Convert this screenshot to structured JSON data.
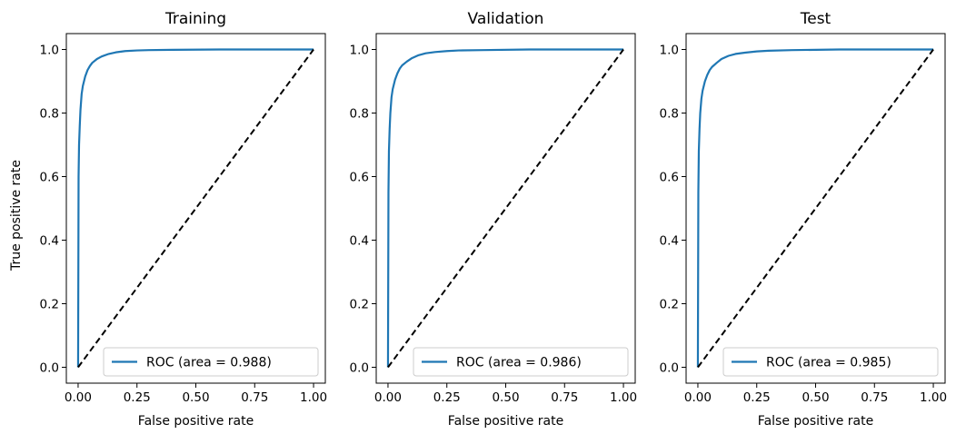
{
  "figure": {
    "ylabel": "True positive rate"
  },
  "chart_data": [
    {
      "type": "line",
      "title": "Training",
      "xlabel": "False positive rate",
      "ylabel": "True positive rate",
      "xlim": [
        -0.05,
        1.05
      ],
      "ylim": [
        -0.05,
        1.05
      ],
      "xticks": [
        "0.00",
        "0.25",
        "0.50",
        "0.75",
        "1.00"
      ],
      "yticks": [
        "0.0",
        "0.2",
        "0.4",
        "0.6",
        "0.8",
        "1.0"
      ],
      "series": [
        {
          "name": "ROC (area = 0.988)",
          "color": "#1f77b4",
          "x": [
            0.0,
            0.002,
            0.004,
            0.007,
            0.01,
            0.015,
            0.02,
            0.03,
            0.04,
            0.05,
            0.06,
            0.08,
            0.1,
            0.13,
            0.16,
            0.2,
            0.25,
            0.3,
            0.4,
            0.6,
            1.0
          ],
          "y": [
            0.0,
            0.6,
            0.7,
            0.76,
            0.81,
            0.86,
            0.885,
            0.915,
            0.935,
            0.948,
            0.958,
            0.97,
            0.978,
            0.986,
            0.991,
            0.995,
            0.997,
            0.998,
            0.999,
            1.0,
            1.0
          ]
        },
        {
          "name": "",
          "color": "#000000",
          "dashed": true,
          "x": [
            0,
            1
          ],
          "y": [
            0,
            1
          ]
        }
      ],
      "legend": {
        "position": "lower-right"
      }
    },
    {
      "type": "line",
      "title": "Validation",
      "xlabel": "False positive rate",
      "ylabel": "",
      "xlim": [
        -0.05,
        1.05
      ],
      "ylim": [
        -0.05,
        1.05
      ],
      "xticks": [
        "0.00",
        "0.25",
        "0.50",
        "0.75",
        "1.00"
      ],
      "yticks": [
        "0.0",
        "0.2",
        "0.4",
        "0.6",
        "0.8",
        "1.0"
      ],
      "series": [
        {
          "name": "ROC (area = 0.986)",
          "color": "#1f77b4",
          "x": [
            0.0,
            0.002,
            0.004,
            0.007,
            0.01,
            0.015,
            0.02,
            0.03,
            0.04,
            0.05,
            0.06,
            0.08,
            0.1,
            0.13,
            0.16,
            0.2,
            0.25,
            0.3,
            0.4,
            0.6,
            1.0
          ],
          "y": [
            0.0,
            0.55,
            0.68,
            0.75,
            0.8,
            0.85,
            0.875,
            0.905,
            0.925,
            0.94,
            0.95,
            0.962,
            0.972,
            0.982,
            0.988,
            0.992,
            0.995,
            0.997,
            0.998,
            1.0,
            1.0
          ]
        },
        {
          "name": "",
          "color": "#000000",
          "dashed": true,
          "x": [
            0,
            1
          ],
          "y": [
            0,
            1
          ]
        }
      ],
      "legend": {
        "position": "lower-right"
      }
    },
    {
      "type": "line",
      "title": "Test",
      "xlabel": "False positive rate",
      "ylabel": "",
      "xlim": [
        -0.05,
        1.05
      ],
      "ylim": [
        -0.05,
        1.05
      ],
      "xticks": [
        "0.00",
        "0.25",
        "0.50",
        "0.75",
        "1.00"
      ],
      "yticks": [
        "0.0",
        "0.2",
        "0.4",
        "0.6",
        "0.8",
        "1.0"
      ],
      "series": [
        {
          "name": "ROC (area = 0.985)",
          "color": "#1f77b4",
          "x": [
            0.0,
            0.002,
            0.004,
            0.007,
            0.01,
            0.015,
            0.02,
            0.03,
            0.04,
            0.05,
            0.06,
            0.08,
            0.1,
            0.13,
            0.16,
            0.2,
            0.25,
            0.3,
            0.4,
            0.6,
            1.0
          ],
          "y": [
            0.0,
            0.55,
            0.68,
            0.75,
            0.8,
            0.845,
            0.87,
            0.9,
            0.92,
            0.935,
            0.945,
            0.958,
            0.97,
            0.98,
            0.986,
            0.99,
            0.994,
            0.996,
            0.998,
            1.0,
            1.0
          ]
        },
        {
          "name": "",
          "color": "#000000",
          "dashed": true,
          "x": [
            0,
            1
          ],
          "y": [
            0,
            1
          ]
        }
      ],
      "legend": {
        "position": "lower-right"
      }
    }
  ]
}
